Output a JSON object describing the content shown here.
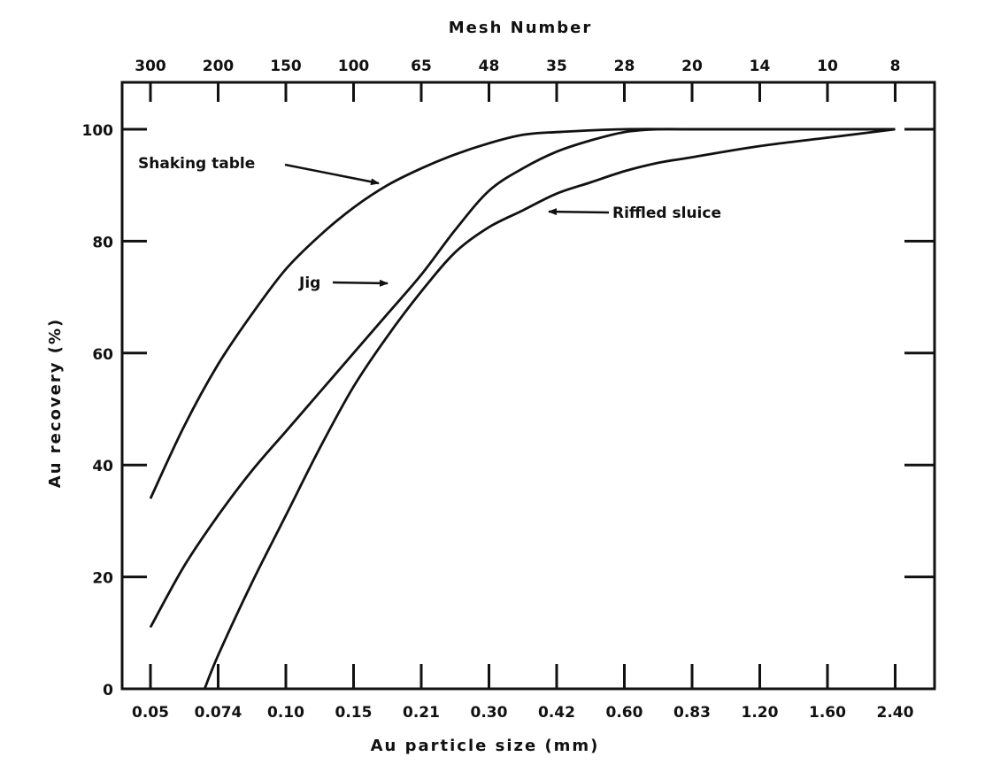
{
  "chart_data": {
    "type": "line",
    "xlabel": "Au particle size (mm)",
    "x2label": "Mesh Number",
    "ylabel": "Au recovery (%)",
    "ylim": [
      0,
      110
    ],
    "x_categories": [
      "0.05",
      "0.074",
      "0.10",
      "0.15",
      "0.21",
      "0.30",
      "0.42",
      "0.60",
      "0.83",
      "1.20",
      "1.60",
      "2.40"
    ],
    "x2_categories": [
      "300",
      "200",
      "150",
      "100",
      "65",
      "48",
      "35",
      "28",
      "20",
      "14",
      "10",
      "8"
    ],
    "y_ticks": [
      "0",
      "20",
      "40",
      "60",
      "80",
      "100"
    ],
    "grid": false,
    "series": [
      {
        "name": "Shaking table",
        "points": [
          [
            0.0,
            34
          ],
          [
            0.5,
            47
          ],
          [
            1.0,
            58
          ],
          [
            1.5,
            67
          ],
          [
            2.0,
            75
          ],
          [
            2.5,
            81
          ],
          [
            3.0,
            86
          ],
          [
            3.5,
            90
          ],
          [
            4.0,
            93
          ],
          [
            4.5,
            95.5
          ],
          [
            5.0,
            97.5
          ],
          [
            5.5,
            99
          ],
          [
            6.0,
            99.5
          ],
          [
            7.0,
            100
          ],
          [
            8.0,
            100
          ],
          [
            9.0,
            100
          ],
          [
            10.0,
            100
          ],
          [
            11.0,
            100
          ]
        ]
      },
      {
        "name": "Jig",
        "points": [
          [
            0.0,
            11
          ],
          [
            0.5,
            22
          ],
          [
            1.0,
            31
          ],
          [
            1.5,
            39
          ],
          [
            2.0,
            46
          ],
          [
            2.5,
            53
          ],
          [
            3.0,
            60
          ],
          [
            3.5,
            67
          ],
          [
            4.0,
            74
          ],
          [
            4.5,
            82
          ],
          [
            5.0,
            89
          ],
          [
            5.5,
            93
          ],
          [
            6.0,
            96
          ],
          [
            6.5,
            98
          ],
          [
            7.0,
            99.5
          ],
          [
            7.5,
            100
          ],
          [
            8.0,
            100
          ],
          [
            9.0,
            100
          ],
          [
            10.0,
            100
          ],
          [
            11.0,
            100
          ]
        ]
      },
      {
        "name": "Riffled sluice",
        "points": [
          [
            0.8,
            0
          ],
          [
            1.0,
            6
          ],
          [
            1.5,
            19
          ],
          [
            2.0,
            31
          ],
          [
            2.5,
            43
          ],
          [
            3.0,
            54
          ],
          [
            3.5,
            63
          ],
          [
            4.0,
            71
          ],
          [
            4.5,
            78
          ],
          [
            5.0,
            82.5
          ],
          [
            5.5,
            85.5
          ],
          [
            6.0,
            88.5
          ],
          [
            6.5,
            90.5
          ],
          [
            7.0,
            92.5
          ],
          [
            7.5,
            94
          ],
          [
            8.0,
            95
          ],
          [
            9.0,
            97
          ],
          [
            10.0,
            98.5
          ],
          [
            11.0,
            100
          ]
        ]
      }
    ],
    "annotations": [
      {
        "text": "Shaking table",
        "series": "Shaking table"
      },
      {
        "text": "Jig",
        "series": "Jig"
      },
      {
        "text": "Riffled sluice",
        "series": "Riffled sluice"
      }
    ]
  }
}
